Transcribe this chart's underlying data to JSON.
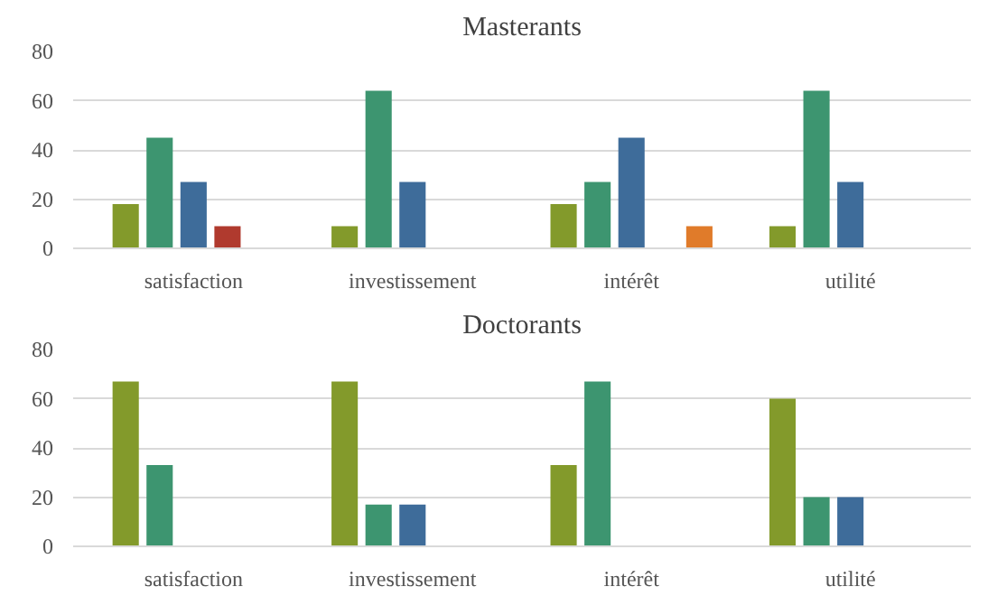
{
  "chart_data": [
    {
      "type": "bar",
      "title": "Masterants",
      "categories": [
        "satisfaction",
        "investissement",
        "intérêt",
        "utilité"
      ],
      "series": [
        {
          "color": "#839a2b",
          "values": [
            18,
            9,
            18,
            9
          ]
        },
        {
          "color": "#3d9570",
          "values": [
            45,
            64,
            27,
            64
          ]
        },
        {
          "color": "#3e6c9a",
          "values": [
            27,
            27,
            45,
            27
          ]
        },
        {
          "color": "#b03a2e",
          "values": [
            9,
            0,
            0,
            0
          ]
        },
        {
          "color": "#e07b2a",
          "values": [
            0,
            0,
            9,
            0
          ]
        }
      ],
      "ylim": [
        0,
        80
      ],
      "yticks": [
        0,
        20,
        40,
        60,
        80
      ],
      "grid": "y"
    },
    {
      "type": "bar",
      "title": "Doctorants",
      "categories": [
        "satisfaction",
        "investissement",
        "intérêt",
        "utilité"
      ],
      "series": [
        {
          "color": "#839a2b",
          "values": [
            67,
            67,
            33,
            60
          ]
        },
        {
          "color": "#3d9570",
          "values": [
            33,
            17,
            67,
            20
          ]
        },
        {
          "color": "#3e6c9a",
          "values": [
            0,
            17,
            0,
            20
          ]
        },
        {
          "color": "#b03a2e",
          "values": [
            0,
            0,
            0,
            0
          ]
        },
        {
          "color": "#e07b2a",
          "values": [
            0,
            0,
            0,
            0
          ]
        }
      ],
      "ylim": [
        0,
        80
      ],
      "yticks": [
        0,
        20,
        40,
        60,
        80
      ],
      "grid": "y"
    }
  ]
}
